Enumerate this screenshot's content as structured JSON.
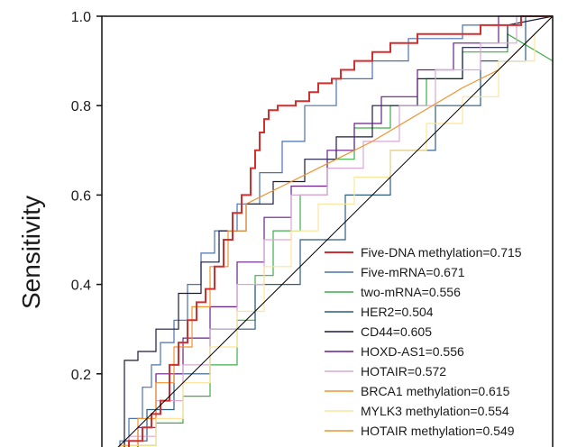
{
  "chart_data": {
    "type": "line",
    "title": "",
    "xlabel": "",
    "ylabel": "Sensitivity",
    "xlim": [
      0,
      1
    ],
    "ylim": [
      0,
      1
    ],
    "yticks": [
      0.2,
      0.4,
      0.6,
      0.8,
      1.0
    ],
    "ytick_labels": [
      "0.2",
      "0.4",
      "0.6",
      "0.8",
      "1.0"
    ],
    "grid": false,
    "legend_position": "bottom-right",
    "reference_line": {
      "color": "#000000",
      "points": [
        [
          0,
          0
        ],
        [
          1,
          1
        ]
      ]
    },
    "series": [
      {
        "name": "Five-DNA methylation=0.715",
        "color": "#d32f2f",
        "points": [
          [
            0,
            0
          ],
          [
            0.04,
            0
          ],
          [
            0.04,
            0.03
          ],
          [
            0.06,
            0.03
          ],
          [
            0.06,
            0.05
          ],
          [
            0.09,
            0.05
          ],
          [
            0.09,
            0.08
          ],
          [
            0.11,
            0.08
          ],
          [
            0.11,
            0.11
          ],
          [
            0.13,
            0.11
          ],
          [
            0.13,
            0.14
          ],
          [
            0.15,
            0.14
          ],
          [
            0.15,
            0.22
          ],
          [
            0.17,
            0.22
          ],
          [
            0.17,
            0.27
          ],
          [
            0.19,
            0.27
          ],
          [
            0.19,
            0.32
          ],
          [
            0.21,
            0.32
          ],
          [
            0.21,
            0.36
          ],
          [
            0.23,
            0.36
          ],
          [
            0.23,
            0.39
          ],
          [
            0.25,
            0.39
          ],
          [
            0.25,
            0.44
          ],
          [
            0.27,
            0.44
          ],
          [
            0.27,
            0.5
          ],
          [
            0.29,
            0.5
          ],
          [
            0.29,
            0.56
          ],
          [
            0.31,
            0.56
          ],
          [
            0.31,
            0.6
          ],
          [
            0.33,
            0.6
          ],
          [
            0.33,
            0.66
          ],
          [
            0.34,
            0.66
          ],
          [
            0.34,
            0.7
          ],
          [
            0.35,
            0.7
          ],
          [
            0.35,
            0.74
          ],
          [
            0.36,
            0.74
          ],
          [
            0.36,
            0.77
          ],
          [
            0.37,
            0.77
          ],
          [
            0.37,
            0.79
          ],
          [
            0.39,
            0.79
          ],
          [
            0.39,
            0.8
          ],
          [
            0.43,
            0.8
          ],
          [
            0.43,
            0.81
          ],
          [
            0.46,
            0.81
          ],
          [
            0.46,
            0.83
          ],
          [
            0.48,
            0.83
          ],
          [
            0.48,
            0.85
          ],
          [
            0.51,
            0.85
          ],
          [
            0.51,
            0.86
          ],
          [
            0.53,
            0.86
          ],
          [
            0.53,
            0.88
          ],
          [
            0.56,
            0.88
          ],
          [
            0.56,
            0.9
          ],
          [
            0.6,
            0.9
          ],
          [
            0.6,
            0.92
          ],
          [
            0.64,
            0.92
          ],
          [
            0.64,
            0.94
          ],
          [
            0.7,
            0.94
          ],
          [
            0.7,
            0.96
          ],
          [
            0.84,
            0.96
          ],
          [
            0.84,
            0.98
          ],
          [
            0.93,
            0.98
          ],
          [
            0.93,
            1.0
          ],
          [
            1,
            1
          ]
        ]
      },
      {
        "name": "Five-mRNA=0.671",
        "color": "#4a72b0",
        "points": [
          [
            0,
            0
          ],
          [
            0.04,
            0
          ],
          [
            0.04,
            0.05
          ],
          [
            0.06,
            0.05
          ],
          [
            0.06,
            0.1
          ],
          [
            0.09,
            0.1
          ],
          [
            0.09,
            0.17
          ],
          [
            0.11,
            0.17
          ],
          [
            0.11,
            0.22
          ],
          [
            0.13,
            0.22
          ],
          [
            0.13,
            0.27
          ],
          [
            0.16,
            0.27
          ],
          [
            0.16,
            0.32
          ],
          [
            0.19,
            0.32
          ],
          [
            0.19,
            0.4
          ],
          [
            0.22,
            0.4
          ],
          [
            0.22,
            0.47
          ],
          [
            0.25,
            0.47
          ],
          [
            0.25,
            0.52
          ],
          [
            0.3,
            0.52
          ],
          [
            0.3,
            0.58
          ],
          [
            0.35,
            0.58
          ],
          [
            0.35,
            0.65
          ],
          [
            0.4,
            0.65
          ],
          [
            0.4,
            0.72
          ],
          [
            0.45,
            0.72
          ],
          [
            0.45,
            0.8
          ],
          [
            0.52,
            0.8
          ],
          [
            0.52,
            0.86
          ],
          [
            0.6,
            0.86
          ],
          [
            0.6,
            0.9
          ],
          [
            0.68,
            0.9
          ],
          [
            0.68,
            0.95
          ],
          [
            0.8,
            0.95
          ],
          [
            0.8,
            0.98
          ],
          [
            0.92,
            0.98
          ],
          [
            0.92,
            1.0
          ],
          [
            1,
            1
          ]
        ]
      },
      {
        "name": "two-mRNA=0.556",
        "color": "#3cae49",
        "points": [
          [
            0,
            0
          ],
          [
            0.06,
            0
          ],
          [
            0.06,
            0.04
          ],
          [
            0.12,
            0.04
          ],
          [
            0.12,
            0.09
          ],
          [
            0.18,
            0.09
          ],
          [
            0.18,
            0.15
          ],
          [
            0.24,
            0.15
          ],
          [
            0.24,
            0.22
          ],
          [
            0.3,
            0.22
          ],
          [
            0.3,
            0.32
          ],
          [
            0.34,
            0.32
          ],
          [
            0.34,
            0.42
          ],
          [
            0.38,
            0.42
          ],
          [
            0.38,
            0.52
          ],
          [
            0.44,
            0.52
          ],
          [
            0.44,
            0.6
          ],
          [
            0.5,
            0.6
          ],
          [
            0.5,
            0.68
          ],
          [
            0.56,
            0.68
          ],
          [
            0.56,
            0.75
          ],
          [
            0.64,
            0.75
          ],
          [
            0.64,
            0.8
          ],
          [
            0.72,
            0.8
          ],
          [
            0.72,
            0.86
          ],
          [
            0.8,
            0.86
          ],
          [
            0.8,
            0.92
          ],
          [
            0.9,
            0.92
          ],
          [
            0.9,
            0.96
          ],
          [
            1,
            0.9
          ]
        ]
      },
      {
        "name": "HER2=0.504",
        "color": "#2c5d82",
        "points": [
          [
            0,
            0
          ],
          [
            0.05,
            0
          ],
          [
            0.05,
            0.05
          ],
          [
            0.1,
            0.05
          ],
          [
            0.1,
            0.12
          ],
          [
            0.16,
            0.12
          ],
          [
            0.16,
            0.2
          ],
          [
            0.24,
            0.2
          ],
          [
            0.24,
            0.3
          ],
          [
            0.34,
            0.3
          ],
          [
            0.34,
            0.4
          ],
          [
            0.44,
            0.4
          ],
          [
            0.44,
            0.5
          ],
          [
            0.54,
            0.5
          ],
          [
            0.54,
            0.6
          ],
          [
            0.64,
            0.6
          ],
          [
            0.64,
            0.7
          ],
          [
            0.74,
            0.7
          ],
          [
            0.74,
            0.8
          ],
          [
            0.84,
            0.8
          ],
          [
            0.84,
            0.9
          ],
          [
            0.94,
            0.9
          ],
          [
            0.94,
            1.0
          ],
          [
            1,
            1
          ]
        ]
      },
      {
        "name": "CD44=0.605",
        "color": "#1a1a40",
        "points": [
          [
            0,
            0
          ],
          [
            0.02,
            0
          ],
          [
            0.02,
            0.02
          ],
          [
            0.05,
            0.02
          ],
          [
            0.05,
            0.23
          ],
          [
            0.08,
            0.23
          ],
          [
            0.08,
            0.25
          ],
          [
            0.12,
            0.25
          ],
          [
            0.12,
            0.3
          ],
          [
            0.17,
            0.3
          ],
          [
            0.17,
            0.38
          ],
          [
            0.22,
            0.38
          ],
          [
            0.22,
            0.45
          ],
          [
            0.26,
            0.45
          ],
          [
            0.26,
            0.52
          ],
          [
            0.32,
            0.52
          ],
          [
            0.32,
            0.58
          ],
          [
            0.38,
            0.58
          ],
          [
            0.38,
            0.63
          ],
          [
            0.45,
            0.63
          ],
          [
            0.45,
            0.68
          ],
          [
            0.52,
            0.68
          ],
          [
            0.52,
            0.73
          ],
          [
            0.6,
            0.73
          ],
          [
            0.6,
            0.8
          ],
          [
            0.7,
            0.8
          ],
          [
            0.7,
            0.86
          ],
          [
            0.8,
            0.86
          ],
          [
            0.8,
            0.93
          ],
          [
            0.9,
            0.93
          ],
          [
            0.9,
            0.98
          ],
          [
            1,
            1
          ]
        ]
      },
      {
        "name": "HOXD-AS1=0.556",
        "color": "#6a1f8a",
        "points": [
          [
            0,
            0
          ],
          [
            0.08,
            0
          ],
          [
            0.08,
            0.08
          ],
          [
            0.12,
            0.08
          ],
          [
            0.12,
            0.2
          ],
          [
            0.18,
            0.2
          ],
          [
            0.18,
            0.28
          ],
          [
            0.24,
            0.28
          ],
          [
            0.24,
            0.35
          ],
          [
            0.3,
            0.35
          ],
          [
            0.3,
            0.45
          ],
          [
            0.36,
            0.45
          ],
          [
            0.36,
            0.55
          ],
          [
            0.42,
            0.55
          ],
          [
            0.42,
            0.62
          ],
          [
            0.5,
            0.62
          ],
          [
            0.5,
            0.7
          ],
          [
            0.56,
            0.7
          ],
          [
            0.56,
            0.76
          ],
          [
            0.62,
            0.76
          ],
          [
            0.62,
            0.82
          ],
          [
            0.7,
            0.82
          ],
          [
            0.7,
            0.88
          ],
          [
            0.78,
            0.88
          ],
          [
            0.78,
            0.94
          ],
          [
            0.88,
            0.94
          ],
          [
            0.88,
            1.0
          ],
          [
            1,
            1
          ]
        ]
      },
      {
        "name": "HOTAIR=0.572",
        "color": "#d9a8d4",
        "points": [
          [
            0,
            0
          ],
          [
            0.06,
            0
          ],
          [
            0.06,
            0.06
          ],
          [
            0.12,
            0.06
          ],
          [
            0.12,
            0.14
          ],
          [
            0.18,
            0.14
          ],
          [
            0.18,
            0.22
          ],
          [
            0.24,
            0.22
          ],
          [
            0.24,
            0.3
          ],
          [
            0.3,
            0.3
          ],
          [
            0.3,
            0.4
          ],
          [
            0.36,
            0.4
          ],
          [
            0.36,
            0.5
          ],
          [
            0.42,
            0.5
          ],
          [
            0.42,
            0.6
          ],
          [
            0.5,
            0.6
          ],
          [
            0.5,
            0.66
          ],
          [
            0.58,
            0.66
          ],
          [
            0.58,
            0.72
          ],
          [
            0.66,
            0.72
          ],
          [
            0.66,
            0.8
          ],
          [
            0.74,
            0.8
          ],
          [
            0.74,
            0.88
          ],
          [
            0.84,
            0.88
          ],
          [
            0.84,
            0.94
          ],
          [
            0.92,
            0.94
          ],
          [
            0.92,
            1.0
          ],
          [
            1,
            1
          ]
        ]
      },
      {
        "name": "BRCA1 methylation=0.615",
        "color": "#f0922e",
        "points": [
          [
            0,
            0
          ],
          [
            0.04,
            0
          ],
          [
            0.04,
            0.04
          ],
          [
            0.08,
            0.04
          ],
          [
            0.08,
            0.1
          ],
          [
            0.12,
            0.1
          ],
          [
            0.12,
            0.18
          ],
          [
            0.16,
            0.18
          ],
          [
            0.16,
            0.26
          ],
          [
            0.2,
            0.26
          ],
          [
            0.2,
            0.35
          ],
          [
            0.24,
            0.35
          ],
          [
            0.24,
            0.44
          ],
          [
            0.28,
            0.44
          ],
          [
            0.28,
            0.52
          ],
          [
            0.32,
            0.52
          ],
          [
            0.32,
            0.58
          ],
          [
            0.4,
            0.62
          ],
          [
            0.5,
            0.67
          ],
          [
            0.6,
            0.72
          ],
          [
            0.7,
            0.78
          ],
          [
            0.8,
            0.84
          ],
          [
            0.88,
            0.88
          ],
          [
            0.92,
            0.92
          ],
          [
            0.96,
            0.96
          ],
          [
            1,
            1
          ]
        ]
      },
      {
        "name": "MYLK3 methylation=0.554",
        "color": "#fce598",
        "points": [
          [
            0,
            0
          ],
          [
            0.06,
            0
          ],
          [
            0.06,
            0.04
          ],
          [
            0.12,
            0.04
          ],
          [
            0.12,
            0.1
          ],
          [
            0.18,
            0.1
          ],
          [
            0.18,
            0.18
          ],
          [
            0.24,
            0.18
          ],
          [
            0.24,
            0.26
          ],
          [
            0.3,
            0.26
          ],
          [
            0.3,
            0.34
          ],
          [
            0.36,
            0.34
          ],
          [
            0.36,
            0.44
          ],
          [
            0.42,
            0.44
          ],
          [
            0.42,
            0.52
          ],
          [
            0.48,
            0.52
          ],
          [
            0.48,
            0.58
          ],
          [
            0.56,
            0.58
          ],
          [
            0.56,
            0.64
          ],
          [
            0.64,
            0.64
          ],
          [
            0.64,
            0.7
          ],
          [
            0.72,
            0.7
          ],
          [
            0.72,
            0.76
          ],
          [
            0.8,
            0.76
          ],
          [
            0.8,
            0.82
          ],
          [
            0.88,
            0.82
          ],
          [
            0.88,
            0.9
          ],
          [
            0.96,
            0.9
          ],
          [
            0.96,
            0.96
          ],
          [
            1,
            1
          ]
        ]
      },
      {
        "name": "HOTAIR methylation=0.549",
        "color": "#f0922e",
        "points": []
      }
    ]
  }
}
